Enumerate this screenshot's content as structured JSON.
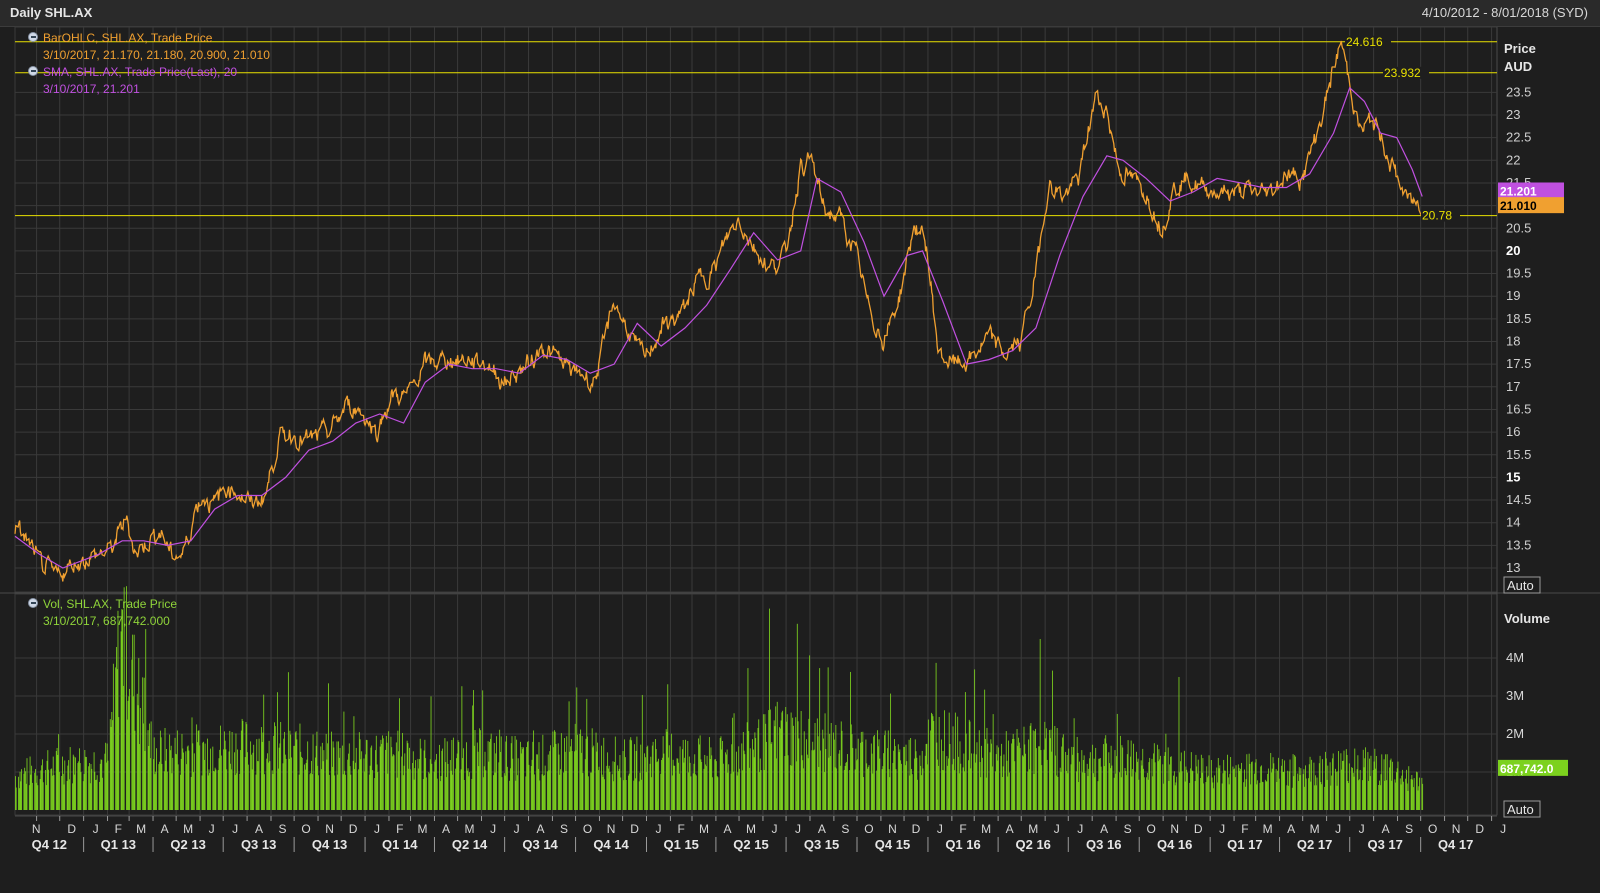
{
  "header": {
    "title": "Daily SHL.AX",
    "date_range": "4/10/2012 - 8/01/2018 (SYD)"
  },
  "legend": {
    "ohlc_name": "BarOHLC, SHL.AX, Trade Price",
    "ohlc_values": "3/10/2017, 21.170, 21.180, 20.900, 21.010",
    "sma_name": "SMA, SHL.AX, Trade Price(Last),  20",
    "sma_values": "3/10/2017, 21.201",
    "vol_name": "Vol, SHL.AX, Trade Price",
    "vol_values": "3/10/2017, 687,742.000"
  },
  "axis": {
    "price_title": "Price",
    "price_unit": "AUD",
    "volume_title": "Volume",
    "auto_label": "Auto"
  },
  "colors": {
    "price": "#f0a030",
    "sma": "#c050e0",
    "volume": "#7cd11e",
    "hline": "#e8e000",
    "grid": "#3a3a3a",
    "background": "#1e1e1e"
  },
  "chart_data": [
    {
      "type": "line",
      "series": [
        {
          "name": "BarOHLC, SHL.AX, Trade Price",
          "x": [
            "2012-10-04",
            "2012-10-20",
            "2012-11-05",
            "2012-11-25",
            "2012-12-20",
            "2013-01-20",
            "2013-02-05",
            "2013-02-12",
            "2013-02-25",
            "2013-03-10",
            "2013-03-25",
            "2013-04-10",
            "2013-04-25",
            "2013-05-10",
            "2013-05-20",
            "2013-05-28",
            "2013-06-05",
            "2013-06-20",
            "2013-07-05",
            "2013-07-20",
            "2013-08-05",
            "2013-08-25",
            "2013-09-10",
            "2013-09-25",
            "2013-10-20",
            "2013-11-15",
            "2013-12-10",
            "2013-12-25",
            "2014-01-15",
            "2014-02-05",
            "2014-02-25",
            "2014-03-20",
            "2014-04-15",
            "2014-05-15",
            "2014-06-10",
            "2014-06-30",
            "2014-07-25",
            "2014-08-20",
            "2014-09-10",
            "2014-09-28",
            "2014-10-10",
            "2014-10-25",
            "2014-11-05",
            "2014-11-20",
            "2014-12-15",
            "2014-12-30",
            "2015-01-20",
            "2015-02-15",
            "2015-03-10",
            "2015-03-31",
            "2015-04-15",
            "2015-04-30",
            "2015-05-20",
            "2015-06-10",
            "2015-06-30",
            "2015-07-20",
            "2015-08-03",
            "2015-08-20",
            "2015-09-10",
            "2015-09-30",
            "2015-10-15",
            "2015-11-05",
            "2015-11-25",
            "2015-12-15",
            "2015-12-30",
            "2016-01-15",
            "2016-02-05",
            "2016-02-25",
            "2016-03-20",
            "2016-04-10",
            "2016-04-30",
            "2016-05-20",
            "2016-06-05",
            "2016-06-25",
            "2016-07-15",
            "2016-08-05",
            "2016-08-20",
            "2016-09-05",
            "2016-09-20",
            "2016-10-10",
            "2016-10-30",
            "2016-11-15",
            "2016-11-30",
            "2016-12-20",
            "2017-01-15",
            "2017-02-05",
            "2017-02-25",
            "2017-03-20",
            "2017-04-10",
            "2017-04-30",
            "2017-05-20",
            "2017-06-10",
            "2017-06-20",
            "2017-07-01",
            "2017-07-15",
            "2017-07-30",
            "2017-08-15",
            "2017-08-31",
            "2017-09-15",
            "2017-10-03"
          ],
          "values": [
            13.9,
            13.6,
            13.1,
            12.8,
            13.1,
            13.3,
            13.4,
            13.6,
            14.1,
            13.3,
            13.6,
            13.8,
            13.3,
            13.3,
            13.9,
            14.4,
            14.6,
            14.4,
            14.8,
            14.7,
            14.4,
            14.6,
            15.8,
            16.0,
            15.8,
            16.0,
            16.6,
            16.5,
            16.0,
            16.8,
            16.8,
            17.5,
            17.6,
            17.6,
            17.5,
            17.1,
            17.4,
            17.9,
            17.6,
            17.3,
            17.3,
            17.1,
            17.8,
            18.9,
            18.0,
            17.6,
            18.3,
            18.6,
            19.4,
            19.6,
            20.3,
            20.7,
            20.1,
            19.6,
            19.9,
            21.9,
            22.0,
            20.9,
            20.7,
            19.9,
            18.8,
            18.0,
            19.0,
            20.6,
            20.1,
            17.7,
            17.5,
            17.6,
            18.1,
            17.7,
            18.0,
            19.5,
            21.5,
            21.2,
            21.6,
            23.4,
            23.1,
            21.8,
            21.6,
            21.3,
            20.5,
            21.4,
            21.6,
            21.4,
            21.3,
            21.3,
            21.3,
            21.3,
            21.7,
            21.6,
            22.6,
            24.0,
            24.6,
            23.7,
            22.6,
            22.9,
            22.3,
            21.6,
            21.1,
            21.01
          ]
        },
        {
          "name": "SMA, SHL.AX, Trade Price(Last),  20",
          "x": [
            "2012-10-04",
            "2012-11-05",
            "2012-12-05",
            "2013-01-20",
            "2013-02-20",
            "2013-03-20",
            "2013-04-20",
            "2013-05-20",
            "2013-06-20",
            "2013-07-20",
            "2013-08-20",
            "2013-09-20",
            "2013-10-20",
            "2013-11-20",
            "2013-12-20",
            "2014-01-20",
            "2014-02-20",
            "2014-03-20",
            "2014-04-20",
            "2014-05-20",
            "2014-06-20",
            "2014-07-20",
            "2014-08-20",
            "2014-09-20",
            "2014-10-20",
            "2014-11-20",
            "2014-12-20",
            "2015-01-20",
            "2015-02-20",
            "2015-03-20",
            "2015-04-20",
            "2015-05-20",
            "2015-06-20",
            "2015-07-20",
            "2015-08-10",
            "2015-09-10",
            "2015-10-10",
            "2015-11-05",
            "2015-12-05",
            "2015-12-25",
            "2016-01-20",
            "2016-02-20",
            "2016-03-20",
            "2016-04-20",
            "2016-05-20",
            "2016-06-20",
            "2016-07-20",
            "2016-08-20",
            "2016-09-10",
            "2016-10-10",
            "2016-11-10",
            "2016-12-10",
            "2017-01-10",
            "2017-02-10",
            "2017-03-10",
            "2017-04-10",
            "2017-05-10",
            "2017-06-10",
            "2017-07-01",
            "2017-07-20",
            "2017-08-10",
            "2017-08-31",
            "2017-09-20",
            "2017-10-03"
          ],
          "values": [
            13.7,
            13.3,
            13.0,
            13.3,
            13.6,
            13.6,
            13.5,
            13.6,
            14.3,
            14.6,
            14.6,
            15.0,
            15.6,
            15.8,
            16.2,
            16.4,
            16.2,
            17.1,
            17.5,
            17.4,
            17.4,
            17.3,
            17.7,
            17.6,
            17.3,
            17.5,
            18.4,
            17.9,
            18.3,
            18.8,
            19.6,
            20.4,
            19.8,
            20.0,
            21.6,
            21.3,
            20.2,
            19.0,
            19.9,
            20.0,
            18.9,
            17.5,
            17.6,
            17.8,
            18.3,
            19.9,
            21.2,
            22.1,
            22.0,
            21.6,
            21.1,
            21.3,
            21.6,
            21.5,
            21.4,
            21.4,
            21.7,
            22.6,
            23.6,
            23.3,
            22.6,
            22.5,
            21.8,
            21.201
          ]
        }
      ],
      "y_labels": [
        "13",
        "13.5",
        "14",
        "14.5",
        "15",
        "15.5",
        "16",
        "16.5",
        "17",
        "17.5",
        "18",
        "18.5",
        "19",
        "19.5",
        "20",
        "20.5",
        "21",
        "21.5",
        "22",
        "22.5",
        "23",
        "23.5"
      ],
      "ylim": [
        12.5,
        25.0
      ],
      "hlines": [
        {
          "value": 24.616,
          "label": "24.616"
        },
        {
          "value": 23.932,
          "label": "23.932"
        },
        {
          "value": 20.78,
          "label": "20.78"
        }
      ],
      "last_labels": [
        {
          "value": 21.201,
          "label": "21.201",
          "series": "sma"
        },
        {
          "value": 21.01,
          "label": "21.010",
          "series": "price"
        }
      ],
      "grid": true
    },
    {
      "type": "bar",
      "series": [
        {
          "name": "Vol, SHL.AX, Trade Price",
          "x": [
            "2012-10-04",
            "2012-12-01",
            "2013-02-01",
            "2013-02-18",
            "2013-04-01",
            "2013-06-01",
            "2013-08-01",
            "2013-10-01",
            "2013-12-01",
            "2014-02-01",
            "2014-04-01",
            "2014-06-01",
            "2014-08-01",
            "2014-10-01",
            "2014-12-01",
            "2015-02-01",
            "2015-04-01",
            "2015-06-05",
            "2015-06-20",
            "2015-07-20",
            "2015-09-01",
            "2015-11-01",
            "2015-12-20",
            "2016-01-05",
            "2016-02-01",
            "2016-04-01",
            "2016-06-01",
            "2016-07-15",
            "2016-09-01",
            "2016-11-01",
            "2016-11-30",
            "2017-01-01",
            "2017-03-01",
            "2017-05-01",
            "2017-07-01",
            "2017-08-20",
            "2017-10-03"
          ],
          "values": [
            900000,
            1200000,
            1300000,
            4700000,
            1500000,
            1600000,
            1700000,
            1600000,
            1400000,
            1500000,
            1300000,
            1500000,
            1300000,
            1600000,
            1300000,
            1500000,
            1300000,
            1800000,
            2100000,
            1900000,
            1700000,
            1500000,
            1400000,
            2000000,
            1800000,
            1400000,
            1700000,
            1300000,
            1400000,
            1200000,
            1100000,
            1000000,
            1100000,
            1000000,
            1200000,
            1100000,
            687742
          ]
        }
      ],
      "y_labels": [
        "1M",
        "2M",
        "3M",
        "4M"
      ],
      "ylim": [
        0,
        5300000
      ],
      "last_label": "687,742.0",
      "grid": true
    }
  ],
  "time_axis": {
    "months": [
      {
        "label": "N",
        "date": "2012-11-01"
      },
      {
        "label": "D",
        "date": "2012-12-01"
      },
      {
        "label": "J",
        "date": "2013-01-01"
      },
      {
        "label": "F",
        "date": "2013-02-01"
      },
      {
        "label": "M",
        "date": "2013-03-01"
      },
      {
        "label": "A",
        "date": "2013-04-01"
      },
      {
        "label": "M",
        "date": "2013-05-01"
      },
      {
        "label": "J",
        "date": "2013-06-01"
      },
      {
        "label": "J",
        "date": "2013-07-01"
      },
      {
        "label": "A",
        "date": "2013-08-01"
      },
      {
        "label": "S",
        "date": "2013-09-01"
      },
      {
        "label": "O",
        "date": "2013-10-01"
      },
      {
        "label": "N",
        "date": "2013-11-01"
      },
      {
        "label": "D",
        "date": "2013-12-01"
      },
      {
        "label": "J",
        "date": "2014-01-01"
      },
      {
        "label": "F",
        "date": "2014-02-01"
      },
      {
        "label": "M",
        "date": "2014-03-01"
      },
      {
        "label": "A",
        "date": "2014-04-01"
      },
      {
        "label": "M",
        "date": "2014-05-01"
      },
      {
        "label": "J",
        "date": "2014-06-01"
      },
      {
        "label": "J",
        "date": "2014-07-01"
      },
      {
        "label": "A",
        "date": "2014-08-01"
      },
      {
        "label": "S",
        "date": "2014-09-01"
      },
      {
        "label": "O",
        "date": "2014-10-01"
      },
      {
        "label": "N",
        "date": "2014-11-01"
      },
      {
        "label": "D",
        "date": "2014-12-01"
      },
      {
        "label": "J",
        "date": "2015-01-01"
      },
      {
        "label": "F",
        "date": "2015-02-01"
      },
      {
        "label": "M",
        "date": "2015-03-01"
      },
      {
        "label": "A",
        "date": "2015-04-01"
      },
      {
        "label": "M",
        "date": "2015-05-01"
      },
      {
        "label": "J",
        "date": "2015-06-01"
      },
      {
        "label": "J",
        "date": "2015-07-01"
      },
      {
        "label": "A",
        "date": "2015-08-01"
      },
      {
        "label": "S",
        "date": "2015-09-01"
      },
      {
        "label": "O",
        "date": "2015-10-01"
      },
      {
        "label": "N",
        "date": "2015-11-01"
      },
      {
        "label": "D",
        "date": "2015-12-01"
      },
      {
        "label": "J",
        "date": "2016-01-01"
      },
      {
        "label": "F",
        "date": "2016-02-01"
      },
      {
        "label": "M",
        "date": "2016-03-01"
      },
      {
        "label": "A",
        "date": "2016-04-01"
      },
      {
        "label": "M",
        "date": "2016-05-01"
      },
      {
        "label": "J",
        "date": "2016-06-01"
      },
      {
        "label": "J",
        "date": "2016-07-01"
      },
      {
        "label": "A",
        "date": "2016-08-01"
      },
      {
        "label": "S",
        "date": "2016-09-01"
      },
      {
        "label": "O",
        "date": "2016-10-01"
      },
      {
        "label": "N",
        "date": "2016-11-01"
      },
      {
        "label": "D",
        "date": "2016-12-01"
      },
      {
        "label": "J",
        "date": "2017-01-01"
      },
      {
        "label": "F",
        "date": "2017-02-01"
      },
      {
        "label": "M",
        "date": "2017-03-01"
      },
      {
        "label": "A",
        "date": "2017-04-01"
      },
      {
        "label": "M",
        "date": "2017-05-01"
      },
      {
        "label": "J",
        "date": "2017-06-01"
      },
      {
        "label": "J",
        "date": "2017-07-01"
      },
      {
        "label": "A",
        "date": "2017-08-01"
      },
      {
        "label": "S",
        "date": "2017-09-01"
      },
      {
        "label": "O",
        "date": "2017-10-01"
      },
      {
        "label": "N",
        "date": "2017-11-01"
      },
      {
        "label": "D",
        "date": "2017-12-01"
      },
      {
        "label": "J",
        "date": "2018-01-01"
      }
    ],
    "quarters": [
      {
        "label": "Q4 12",
        "date": "2012-10-01"
      },
      {
        "label": "Q1 13",
        "date": "2013-01-01"
      },
      {
        "label": "Q2 13",
        "date": "2013-04-01"
      },
      {
        "label": "Q3 13",
        "date": "2013-07-01"
      },
      {
        "label": "Q4 13",
        "date": "2013-10-01"
      },
      {
        "label": "Q1 14",
        "date": "2014-01-01"
      },
      {
        "label": "Q2 14",
        "date": "2014-04-01"
      },
      {
        "label": "Q3 14",
        "date": "2014-07-01"
      },
      {
        "label": "Q4 14",
        "date": "2014-10-01"
      },
      {
        "label": "Q1 15",
        "date": "2015-01-01"
      },
      {
        "label": "Q2 15",
        "date": "2015-04-01"
      },
      {
        "label": "Q3 15",
        "date": "2015-07-01"
      },
      {
        "label": "Q4 15",
        "date": "2015-10-01"
      },
      {
        "label": "Q1 16",
        "date": "2016-01-01"
      },
      {
        "label": "Q2 16",
        "date": "2016-04-01"
      },
      {
        "label": "Q3 16",
        "date": "2016-07-01"
      },
      {
        "label": "Q4 16",
        "date": "2016-10-01"
      },
      {
        "label": "Q1 17",
        "date": "2017-01-01"
      },
      {
        "label": "Q2 17",
        "date": "2017-04-01"
      },
      {
        "label": "Q3 17",
        "date": "2017-07-01"
      },
      {
        "label": "Q4 17",
        "date": "2017-10-01"
      }
    ]
  }
}
